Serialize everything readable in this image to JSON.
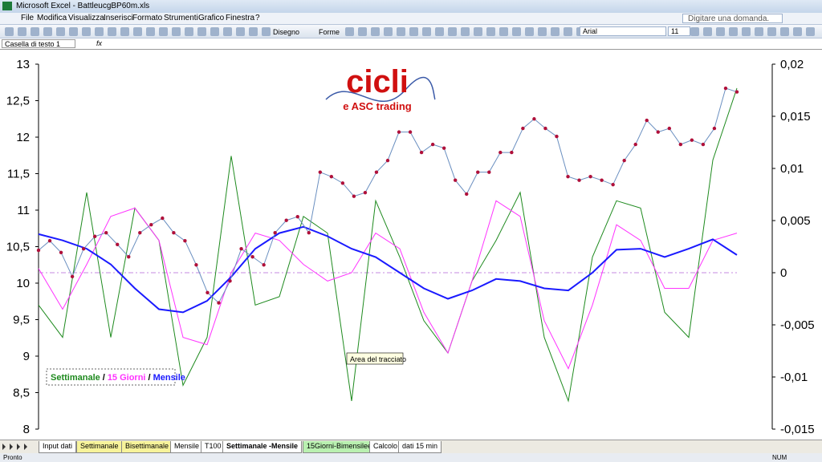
{
  "window": {
    "title": "Microsoft Excel - BattleucgBP60m.xls",
    "help_box": "Digitare una domanda.",
    "menu": [
      "File",
      "Modifica",
      "Visualizza",
      "Inserisci",
      "Formato",
      "Strumenti",
      "Grafico",
      "Finestra",
      "?"
    ],
    "toolbar": {
      "draw": "Disegno",
      "shapes": "Forme",
      "font": "Arial",
      "size": "11"
    },
    "name_box": "Casella di testo 1",
    "fx": "fx",
    "tabs": [
      "Input dati",
      "Settimanale",
      "Bisettimanale",
      "Mensile",
      "T100",
      "Settimanale -Mensile",
      "15Giorni-Bimensilee",
      "Calcolo",
      "dati 15 min"
    ],
    "status": {
      "left": "Pronto",
      "right": "NUM"
    }
  },
  "chart_data": {
    "type": "line",
    "logo": {
      "title": "cicli",
      "subtitle": "e ASC trading"
    },
    "tooltip": "Area del tracciato",
    "legend_separator": "/",
    "ylim": [
      8,
      13
    ],
    "yticks": [
      8,
      {
        "value": 8.5,
        "label": "8,5"
      },
      9,
      {
        "value": 9.5,
        "label": "9,5"
      },
      10,
      {
        "value": 10.5,
        "label": "10,5"
      },
      11,
      {
        "value": 11.5,
        "label": "11,5"
      },
      12,
      {
        "value": 12.5,
        "label": "12,5"
      },
      13
    ],
    "y2lim": [
      -0.015,
      0.02
    ],
    "y2ticks": [
      {
        "value": -0.015,
        "label": "-0,015"
      },
      {
        "value": -0.01,
        "label": "-0,01"
      },
      {
        "value": -0.005,
        "label": "-0,005"
      },
      0,
      {
        "value": 0.005,
        "label": "0,005"
      },
      {
        "value": 0.01,
        "label": "0,01"
      },
      {
        "value": 0.015,
        "label": "0,015"
      },
      {
        "value": 0.02,
        "label": "0,02"
      }
    ],
    "series": [
      {
        "name": "Settimanale",
        "color": "#1e8a1e",
        "axis": "y2",
        "legend": true,
        "values": [
          -0.0031,
          -0.0062,
          0.0077,
          -0.0062,
          0.0062,
          0.0031,
          -0.0108,
          -0.0062,
          0.0112,
          -0.0031,
          -0.0023,
          0.0054,
          0.0038,
          -0.0123,
          0.0069,
          0.0015,
          -0.0046,
          -0.0077,
          -0.0008,
          0.0031,
          0.0077,
          -0.0062,
          -0.0123,
          0.0015,
          0.0069,
          0.0062,
          -0.0038,
          -0.0062,
          0.0108,
          0.0177
        ]
      },
      {
        "name": "15 Giorni",
        "color": "#ff33ff",
        "axis": "y2",
        "legend": true,
        "values": [
          0.0004,
          -0.0035,
          0.0008,
          0.0054,
          0.0062,
          0.0031,
          -0.0062,
          -0.0069,
          0,
          0.0038,
          0.0031,
          0.0008,
          -0.0008,
          0,
          0.0038,
          0.0023,
          -0.0038,
          -0.0077,
          -0.0008,
          0.0069,
          0.0054,
          -0.0046,
          -0.0092,
          -0.0031,
          0.0046,
          0.0031,
          -0.0015,
          -0.0015,
          0.0031,
          0.0038
        ]
      },
      {
        "name": "Mensile",
        "color": "#1a1aff",
        "axis": "y2",
        "legend": true,
        "values": [
          0.0037,
          0.0031,
          0.0023,
          0.0008,
          -0.0015,
          -0.0035,
          -0.0038,
          -0.0027,
          -0.0004,
          0.0023,
          0.0038,
          0.0044,
          0.0035,
          0.0023,
          0.0015,
          0,
          -0.0015,
          -0.0025,
          -0.0017,
          -0.0006,
          -0.0008,
          -0.0015,
          -0.0017,
          0,
          0.0022,
          0.0023,
          0.0015,
          0.0023,
          0.0032,
          0.0017
        ]
      },
      {
        "color": "#b0103a",
        "axis": "y",
        "markers": true,
        "values": [
          10.45,
          10.58,
          10.42,
          10.09,
          10.47,
          10.64,
          10.69,
          10.53,
          10.36,
          10.69,
          10.8,
          10.89,
          10.69,
          10.58,
          10.25,
          9.87,
          9.73,
          10.03,
          10.47,
          10.36,
          10.25,
          10.69,
          10.86,
          10.91,
          10.69,
          11.52,
          11.46,
          11.37,
          11.19,
          11.24,
          11.52,
          11.68,
          12.07,
          12.07,
          11.79,
          11.9,
          11.85,
          11.41,
          11.22,
          11.52,
          11.52,
          11.79,
          11.79,
          12.12,
          12.25,
          12.12,
          12.01,
          11.46,
          11.41,
          11.46,
          11.41,
          11.35,
          11.68,
          11.9,
          12.23,
          12.07,
          12.12,
          11.9,
          11.96,
          11.9,
          12.12,
          12.67,
          12.62
        ]
      }
    ]
  }
}
